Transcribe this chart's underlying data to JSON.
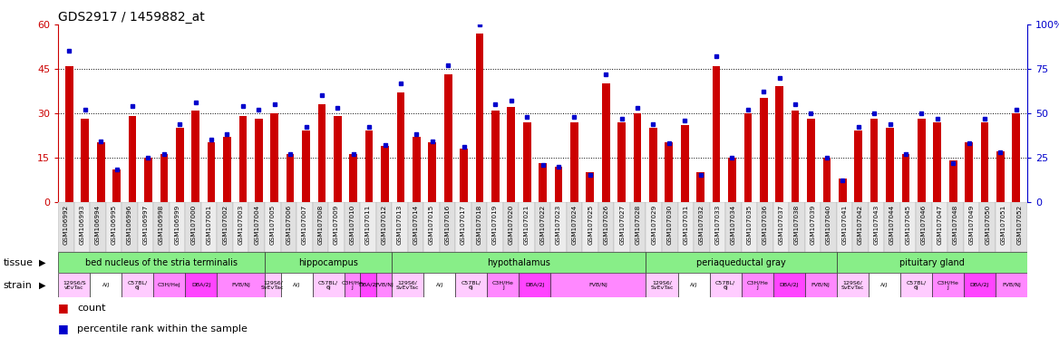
{
  "title": "GDS2917 / 1459882_at",
  "samples": [
    "GSM106992",
    "GSM106993",
    "GSM106994",
    "GSM106995",
    "GSM106996",
    "GSM106997",
    "GSM106998",
    "GSM106999",
    "GSM107000",
    "GSM107001",
    "GSM107002",
    "GSM107003",
    "GSM107004",
    "GSM107005",
    "GSM107006",
    "GSM107007",
    "GSM107008",
    "GSM107009",
    "GSM107010",
    "GSM107011",
    "GSM107012",
    "GSM107013",
    "GSM107014",
    "GSM107015",
    "GSM107016",
    "GSM107017",
    "GSM107018",
    "GSM107019",
    "GSM107020",
    "GSM107021",
    "GSM107022",
    "GSM107023",
    "GSM107024",
    "GSM107025",
    "GSM107026",
    "GSM107027",
    "GSM107028",
    "GSM107029",
    "GSM107030",
    "GSM107031",
    "GSM107032",
    "GSM107033",
    "GSM107034",
    "GSM107035",
    "GSM107036",
    "GSM107037",
    "GSM107038",
    "GSM107039",
    "GSM107040",
    "GSM107041",
    "GSM107042",
    "GSM107043",
    "GSM107044",
    "GSM107045",
    "GSM107046",
    "GSM107047",
    "GSM107048",
    "GSM107049",
    "GSM107050",
    "GSM107051",
    "GSM107052"
  ],
  "counts": [
    46,
    28,
    20,
    11,
    29,
    15,
    16,
    25,
    31,
    20,
    22,
    29,
    28,
    30,
    16,
    24,
    33,
    29,
    16,
    24,
    19,
    37,
    22,
    20,
    43,
    18,
    57,
    31,
    32,
    27,
    13,
    12,
    27,
    10,
    40,
    27,
    30,
    25,
    20,
    26,
    10,
    46,
    15,
    30,
    35,
    39,
    31,
    28,
    15,
    8,
    24,
    28,
    25,
    16,
    28,
    27,
    14,
    20,
    27,
    17,
    30
  ],
  "percentiles": [
    85,
    52,
    34,
    18,
    54,
    25,
    27,
    44,
    56,
    35,
    38,
    54,
    52,
    55,
    27,
    42,
    60,
    53,
    27,
    42,
    32,
    67,
    38,
    34,
    77,
    31,
    100,
    55,
    57,
    48,
    21,
    20,
    48,
    15,
    72,
    47,
    53,
    44,
    33,
    46,
    15,
    82,
    25,
    52,
    62,
    70,
    55,
    50,
    25,
    12,
    42,
    50,
    44,
    27,
    50,
    47,
    22,
    33,
    47,
    28,
    52
  ],
  "tissues": [
    {
      "name": "bed nucleus of the stria terminalis",
      "start": 0,
      "end": 12
    },
    {
      "name": "hippocampus",
      "start": 13,
      "end": 20
    },
    {
      "name": "hypothalamus",
      "start": 21,
      "end": 36
    },
    {
      "name": "periaqueductal gray",
      "start": 37,
      "end": 48
    },
    {
      "name": "pituitary gland",
      "start": 49,
      "end": 60
    }
  ],
  "strain_blocks": [
    {
      "name": "129S6/S\nvEvTac",
      "color": "#ffccff",
      "s": 0,
      "e": 1
    },
    {
      "name": "A/J",
      "color": "#ffffff",
      "s": 2,
      "e": 3
    },
    {
      "name": "C57BL/\n6J",
      "color": "#ffccff",
      "s": 4,
      "e": 5
    },
    {
      "name": "C3H/HeJ",
      "color": "#ff88ff",
      "s": 6,
      "e": 7
    },
    {
      "name": "DBA/2J",
      "color": "#ff44ff",
      "s": 8,
      "e": 9
    },
    {
      "name": "FVB/NJ",
      "color": "#ff88ff",
      "s": 10,
      "e": 12
    },
    {
      "name": "129S6/\nSvEvTac",
      "color": "#ffccff",
      "s": 13,
      "e": 13
    },
    {
      "name": "A/J",
      "color": "#ffffff",
      "s": 14,
      "e": 15
    },
    {
      "name": "C57BL/\n6J",
      "color": "#ffccff",
      "s": 16,
      "e": 17
    },
    {
      "name": "C3H/He\nJ",
      "color": "#ff88ff",
      "s": 18,
      "e": 18
    },
    {
      "name": "DBA/2J",
      "color": "#ff44ff",
      "s": 19,
      "e": 19
    },
    {
      "name": "FVB/NJ",
      "color": "#ff88ff",
      "s": 20,
      "e": 20
    },
    {
      "name": "129S6/\nSvEvTac",
      "color": "#ffccff",
      "s": 21,
      "e": 22
    },
    {
      "name": "A/J",
      "color": "#ffffff",
      "s": 23,
      "e": 24
    },
    {
      "name": "C57BL/\n6J",
      "color": "#ffccff",
      "s": 25,
      "e": 26
    },
    {
      "name": "C3H/He\nJ",
      "color": "#ff88ff",
      "s": 27,
      "e": 28
    },
    {
      "name": "DBA/2J",
      "color": "#ff44ff",
      "s": 29,
      "e": 30
    },
    {
      "name": "FVB/NJ",
      "color": "#ff88ff",
      "s": 31,
      "e": 36
    },
    {
      "name": "129S6/\nSvEvTac",
      "color": "#ffccff",
      "s": 37,
      "e": 38
    },
    {
      "name": "A/J",
      "color": "#ffffff",
      "s": 39,
      "e": 40
    },
    {
      "name": "C57BL/\n6J",
      "color": "#ffccff",
      "s": 41,
      "e": 42
    },
    {
      "name": "C3H/He\nJ",
      "color": "#ff88ff",
      "s": 43,
      "e": 44
    },
    {
      "name": "DBA/2J",
      "color": "#ff44ff",
      "s": 45,
      "e": 46
    },
    {
      "name": "FVB/NJ",
      "color": "#ff88ff",
      "s": 47,
      "e": 48
    },
    {
      "name": "129S6/\nSvEvTac",
      "color": "#ffccff",
      "s": 49,
      "e": 50
    },
    {
      "name": "A/J",
      "color": "#ffffff",
      "s": 51,
      "e": 52
    },
    {
      "name": "C57BL/\n6J",
      "color": "#ffccff",
      "s": 53,
      "e": 54
    },
    {
      "name": "C3H/He\nJ",
      "color": "#ff88ff",
      "s": 55,
      "e": 56
    },
    {
      "name": "DBA/2J",
      "color": "#ff44ff",
      "s": 57,
      "e": 58
    },
    {
      "name": "FVB/NJ",
      "color": "#ff88ff",
      "s": 59,
      "e": 60
    }
  ],
  "tissue_color": "#88ee88",
  "bar_color": "#cc0000",
  "percentile_color": "#0000cc",
  "left_ylim": [
    0,
    60
  ],
  "left_yticks": [
    0,
    15,
    30,
    45,
    60
  ],
  "right_ylim": [
    0,
    100
  ],
  "right_yticks": [
    0,
    25,
    50,
    75,
    100
  ],
  "hlines": [
    15,
    30,
    45
  ]
}
